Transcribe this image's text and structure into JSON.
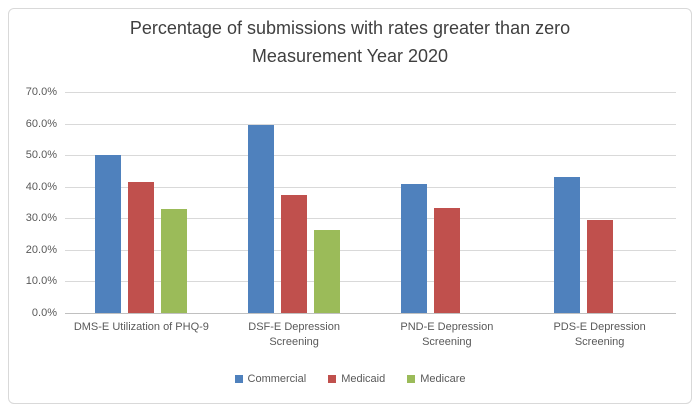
{
  "chart_data": {
    "type": "bar",
    "title": "Percentage of submissions with rates greater than zero Measurement Year 2020",
    "title_lines": [
      "Percentage of submissions with rates greater than zero",
      "Measurement Year 2020"
    ],
    "categories": [
      "DMS-E Utilization of PHQ-9",
      "DSF-E Depression Screening",
      "PND-E Depression Screening",
      "PDS-E Depression Screening"
    ],
    "series": [
      {
        "name": "Commercial",
        "color": "#4F81BD",
        "values": [
          50.2,
          59.4,
          40.9,
          43.0
        ]
      },
      {
        "name": "Medicaid",
        "color": "#C0504D",
        "values": [
          41.5,
          37.4,
          33.2,
          29.4
        ]
      },
      {
        "name": "Medicare",
        "color": "#9BBB59",
        "values": [
          33.1,
          26.4,
          null,
          null
        ]
      }
    ],
    "xlabel": "",
    "ylabel": "",
    "ylim": [
      0,
      70
    ],
    "y_tick_step": 10,
    "y_tick_labels": [
      "70.0%",
      "60.0%",
      "50.0%",
      "40.0%",
      "30.0%",
      "20.0%",
      "10.0%",
      "0.0%"
    ],
    "grid": true,
    "legend_position": "bottom",
    "colors": {
      "title_text": "#3F3F3F",
      "axis_text": "#595959",
      "gridline": "#D9D9D9",
      "frame_border": "#D9D9D9"
    }
  }
}
